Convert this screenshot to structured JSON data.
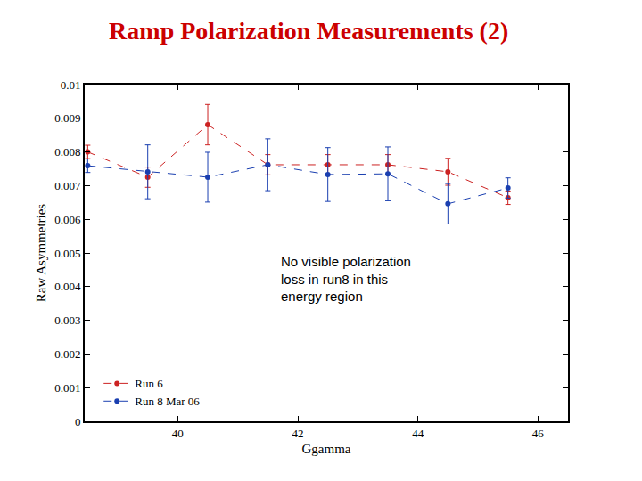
{
  "chart_data": {
    "type": "line",
    "title": "Ramp Polarization Measurements (2)",
    "x_label": "Ggamma",
    "y_label": "Raw Asymmetries",
    "xlim": [
      38.45,
      46.5
    ],
    "xticks": [
      40,
      42,
      44,
      46
    ],
    "ylim": [
      0,
      0.01
    ],
    "yticks": [
      0,
      0.001,
      0.002,
      0.003,
      0.004,
      0.005,
      0.006,
      0.007,
      0.008,
      0.009,
      0.01
    ],
    "grid": false,
    "legend": "lower left",
    "annotation": {
      "lines": [
        "No visible polarization",
        "loss in run8 in this",
        "energy region"
      ],
      "x": 41.69,
      "y": 0.00503
    },
    "series": [
      {
        "name": "Run 6",
        "color": "#cc2222",
        "marker": "circle",
        "line_style": "dash",
        "x": [
          38.5,
          39.5,
          40.5,
          41.5,
          42.5,
          43.5,
          44.5,
          45.5
        ],
        "values": [
          0.008,
          0.00725,
          0.00881,
          0.00762,
          0.00762,
          0.00762,
          0.00741,
          0.00664
        ],
        "errors": [
          0.0002,
          0.0003,
          0.0006,
          0.0003,
          0.0003,
          0.0003,
          0.0004,
          0.0002
        ]
      },
      {
        "name": "Run 8 Mar 06",
        "color": "#1a3fb0",
        "marker": "circle",
        "line_style": "dash",
        "x": [
          38.5,
          39.5,
          40.5,
          41.5,
          42.5,
          43.5,
          44.5,
          45.5
        ],
        "values": [
          0.00759,
          0.00741,
          0.00725,
          0.00762,
          0.00733,
          0.00735,
          0.00646,
          0.00693
        ],
        "errors": [
          0.0002,
          0.0008,
          0.00074,
          0.00077,
          0.0008,
          0.0008,
          0.0006,
          0.0003
        ]
      }
    ]
  }
}
